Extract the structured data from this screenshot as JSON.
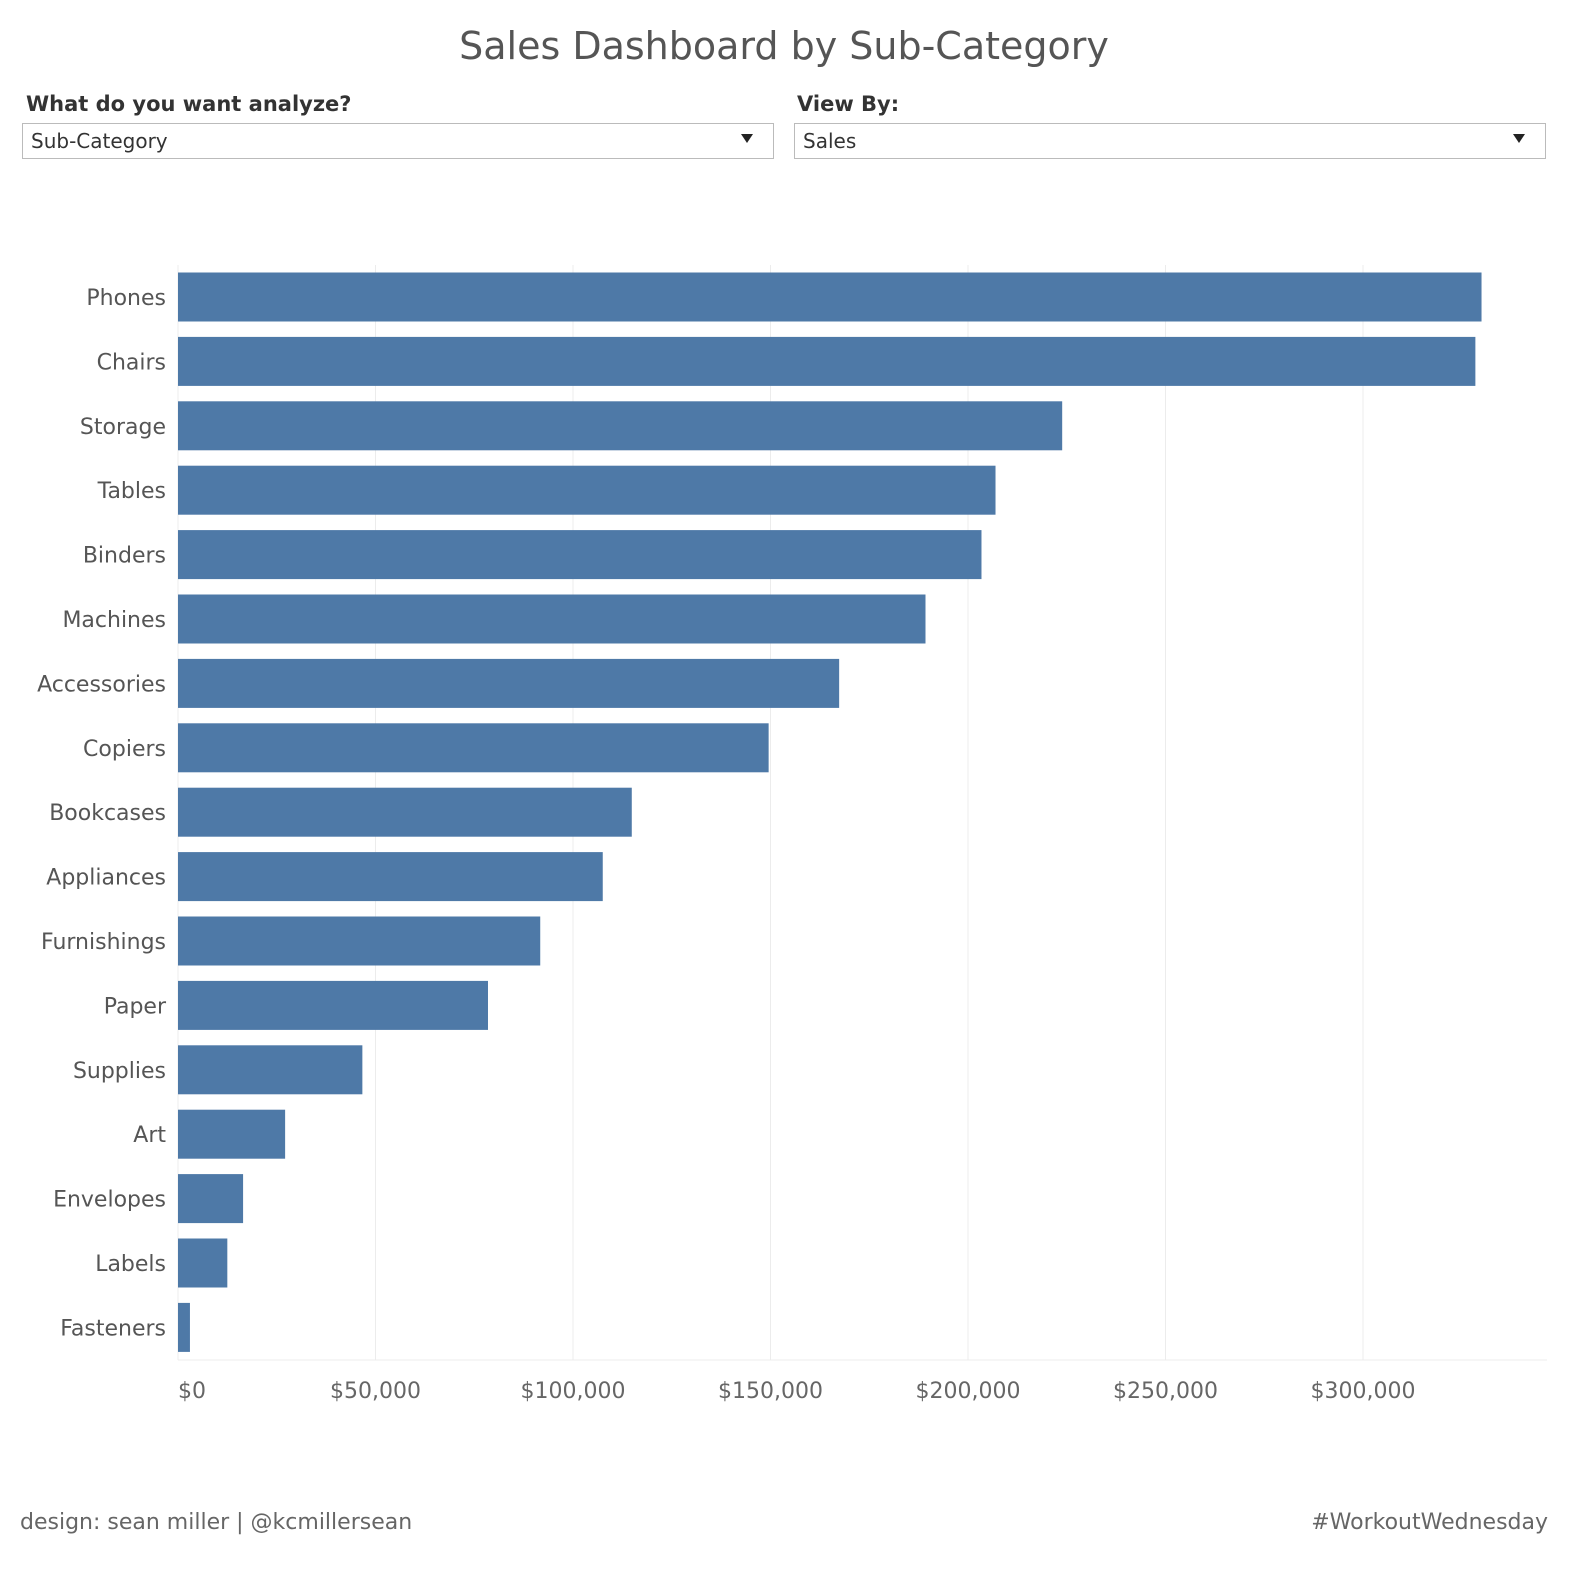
{
  "title": "Sales Dashboard by Sub-Category",
  "filters": {
    "analyze": {
      "label": "What do you want analyze?",
      "value": "Sub-Category"
    },
    "view_by": {
      "label": "View By:",
      "value": "Sales"
    }
  },
  "chart_data": {
    "type": "bar",
    "orientation": "horizontal",
    "categories": [
      "Phones",
      "Chairs",
      "Storage",
      "Tables",
      "Binders",
      "Machines",
      "Accessories",
      "Copiers",
      "Bookcases",
      "Appliances",
      "Furnishings",
      "Paper",
      "Supplies",
      "Art",
      "Envelopes",
      "Labels",
      "Fasteners"
    ],
    "values": [
      330007,
      328449,
      223844,
      206966,
      203413,
      189239,
      167380,
      149528,
      114880,
      107532,
      91705,
      78479,
      46674,
      27119,
      16476,
      12486,
      3024
    ],
    "xlabel": "",
    "ylabel": "",
    "xlim": [
      0,
      347000
    ],
    "ticks": [
      0,
      50000,
      100000,
      150000,
      200000,
      250000,
      300000
    ],
    "tick_labels": [
      "$0",
      "$50,000",
      "$100,000",
      "$150,000",
      "$200,000",
      "$250,000",
      "$300,000"
    ],
    "grid": true,
    "color": "#4e79a7"
  },
  "footer": {
    "left": "design: sean miller | @kcmillersean",
    "right": "#WorkoutWednesday"
  }
}
